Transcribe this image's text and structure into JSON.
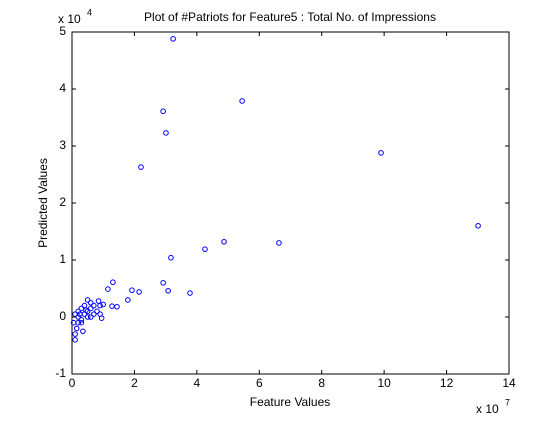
{
  "chart_data": {
    "type": "scatter",
    "title": "Plot of #Patriots for Feature5 : Total No. of Impressions",
    "x_label": "Feature Values",
    "y_label": "Predicted Values",
    "x_multiplier": {
      "base": "x 10",
      "exponent": "7"
    },
    "y_multiplier": {
      "base": "x 10",
      "exponent": "4"
    },
    "color": "#0000ff",
    "xlim": [
      0,
      14
    ],
    "ylim": [
      -1,
      5
    ],
    "xticks": [
      0,
      2,
      4,
      6,
      8,
      10,
      12,
      14
    ],
    "yticks": [
      -1,
      0,
      1,
      2,
      3,
      4,
      5
    ],
    "x": [
      3.24,
      5.45,
      2.92,
      3.01,
      2.21,
      9.9,
      13.01,
      4.87,
      6.63,
      4.26,
      3.17,
      2.92,
      3.08,
      3.78,
      1.92,
      2.15,
      1.79,
      1.31,
      1.15,
      1.28,
      1.44,
      0.1,
      0.1,
      0.15,
      0.2,
      0.3,
      0.2,
      0.4,
      0.5,
      0.6,
      0.7,
      0.5,
      0.6,
      0.8,
      0.9,
      0.9,
      0.85,
      0.3,
      0.4,
      0.2,
      0.1,
      0.05,
      0.3,
      0.5,
      0.7,
      0.95,
      0.35,
      0.25,
      0.6,
      1.0,
      0.45
    ],
    "values": [
      4.88,
      3.79,
      3.61,
      3.23,
      2.63,
      2.88,
      1.6,
      1.32,
      1.3,
      1.19,
      1.04,
      0.6,
      0.46,
      0.42,
      0.47,
      0.44,
      0.3,
      0.61,
      0.49,
      0.19,
      0.18,
      -0.4,
      -0.3,
      -0.2,
      -0.1,
      -0.05,
      0,
      0.05,
      0.1,
      0.15,
      0.2,
      0.3,
      0.25,
      0.1,
      0.05,
      0.2,
      0.28,
      0.15,
      0.2,
      0.1,
      0.05,
      -0.1,
      -0.1,
      0,
      0.05,
      -0.02,
      -0.25,
      0.05,
      0,
      0.22,
      0.12
    ]
  }
}
